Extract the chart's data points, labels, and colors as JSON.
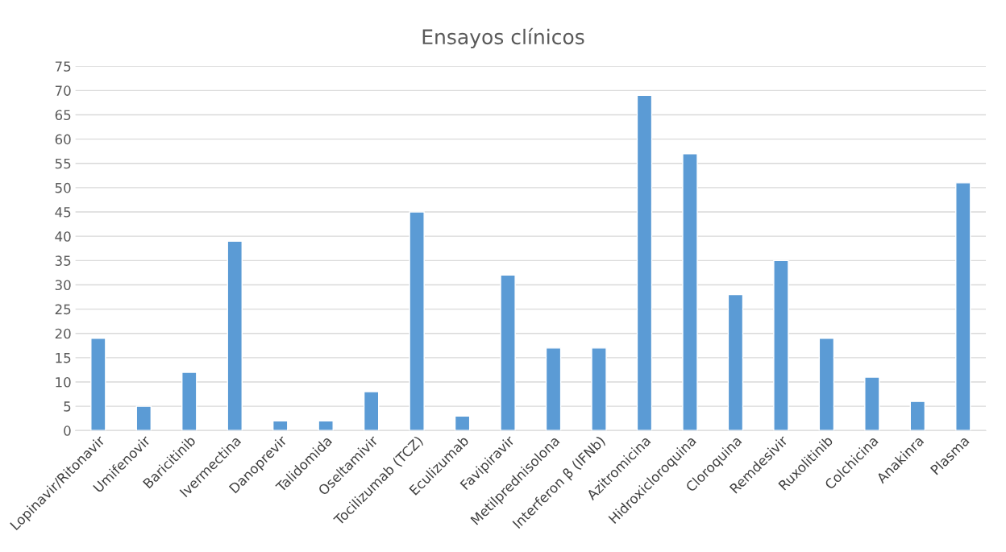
{
  "chart_data": {
    "type": "bar",
    "title": "Ensayos clínicos",
    "categories": [
      "Lopinavir/Ritonavir",
      "Umifenovir",
      "Baricitinib",
      "Ivermectina",
      "Danoprevir",
      "Talidomida",
      "Oseltamivir",
      "Tocilizumab (TCZ)",
      "Eculizumab",
      "Favipiravir",
      "Metilprednisolona",
      "Interferon β (IFNb)",
      "Azitromicina",
      "Hidroxicloroquina",
      "Cloroquina",
      "Remdesivir",
      "Ruxolitinib",
      "Colchicina",
      "Anakinra",
      "Plasma"
    ],
    "values": [
      19,
      5,
      12,
      39,
      2,
      2,
      8,
      45,
      3,
      32,
      17,
      17,
      69,
      57,
      28,
      35,
      19,
      11,
      6,
      51
    ],
    "color": "#5b9bd5",
    "ylim": [
      0,
      75
    ],
    "yticks": [
      0,
      5,
      10,
      15,
      20,
      25,
      30,
      35,
      40,
      45,
      50,
      55,
      60,
      65,
      70,
      75
    ],
    "grid": "y"
  }
}
